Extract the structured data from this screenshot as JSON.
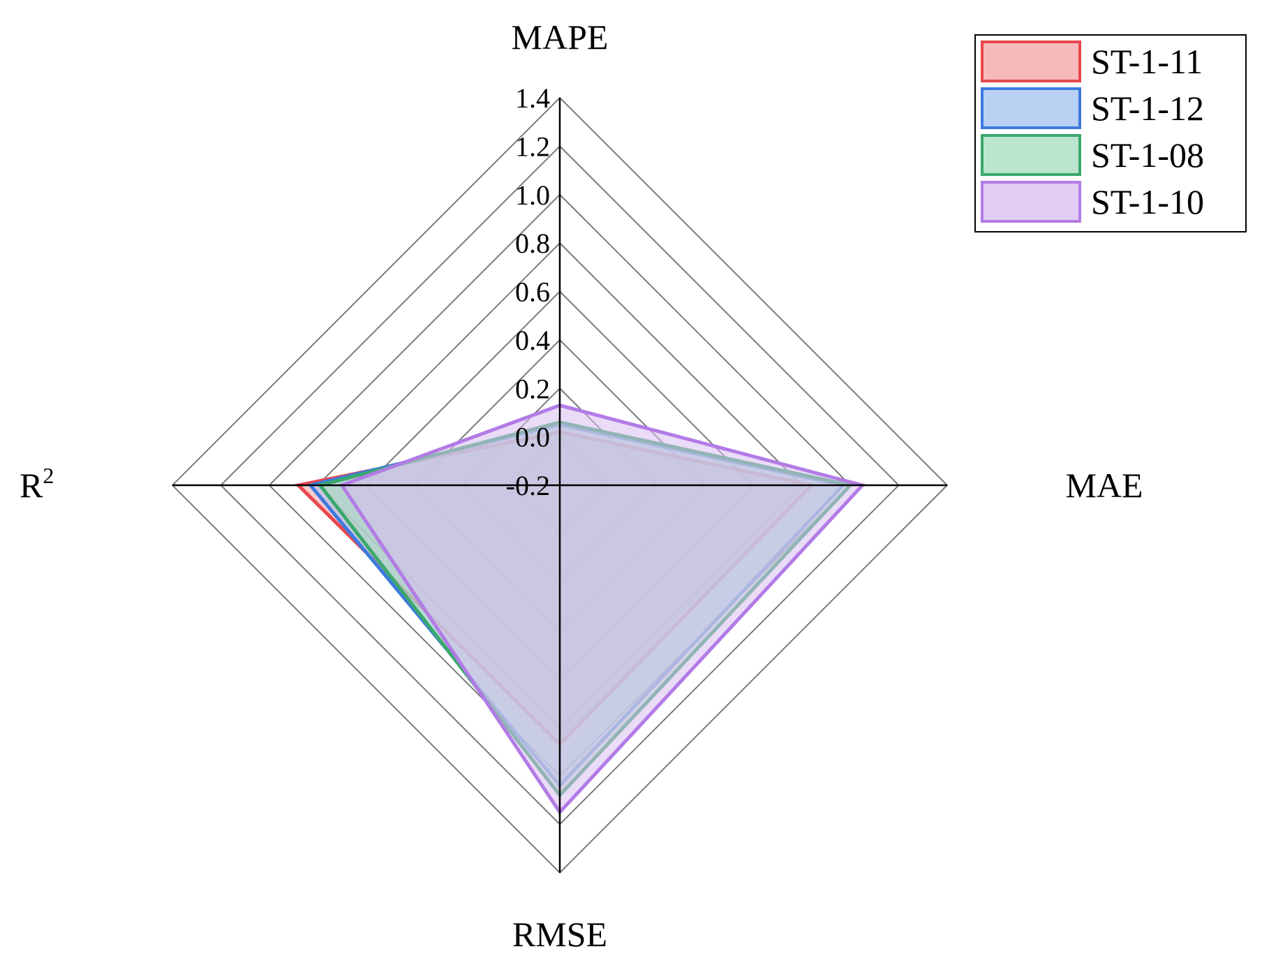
{
  "chart_data": {
    "type": "radar",
    "axes": [
      "MAPE",
      "MAE",
      "RMSE",
      "R²"
    ],
    "axis_labels": {
      "mape": "MAPE",
      "mae": "MAE",
      "rmse": "RMSE",
      "r2_base": "R",
      "r2_sup": "2"
    },
    "rlim": [
      -0.2,
      1.4
    ],
    "ticks": [
      "-0.2",
      "0.0",
      "0.2",
      "0.4",
      "0.6",
      "0.8",
      "1.0",
      "1.2",
      "1.4"
    ],
    "grid": true,
    "legend_position": "top-right",
    "series": [
      {
        "name": "ST-1-11",
        "color": "#e8474c",
        "fill": "#f4a3a5",
        "values": [
          0.02,
          0.84,
          0.87,
          0.88
        ]
      },
      {
        "name": "ST-1-12",
        "color": "#3d7ae0",
        "fill": "#a4c2f0",
        "values": [
          0.05,
          0.97,
          1.04,
          0.83
        ]
      },
      {
        "name": "ST-1-08",
        "color": "#3aa86c",
        "fill": "#a6dcc0",
        "values": [
          0.06,
          1.0,
          1.08,
          0.79
        ]
      },
      {
        "name": "ST-1-10",
        "color": "#b27be6",
        "fill": "#d8bdf0",
        "values": [
          0.13,
          1.05,
          1.15,
          0.7
        ]
      }
    ]
  }
}
